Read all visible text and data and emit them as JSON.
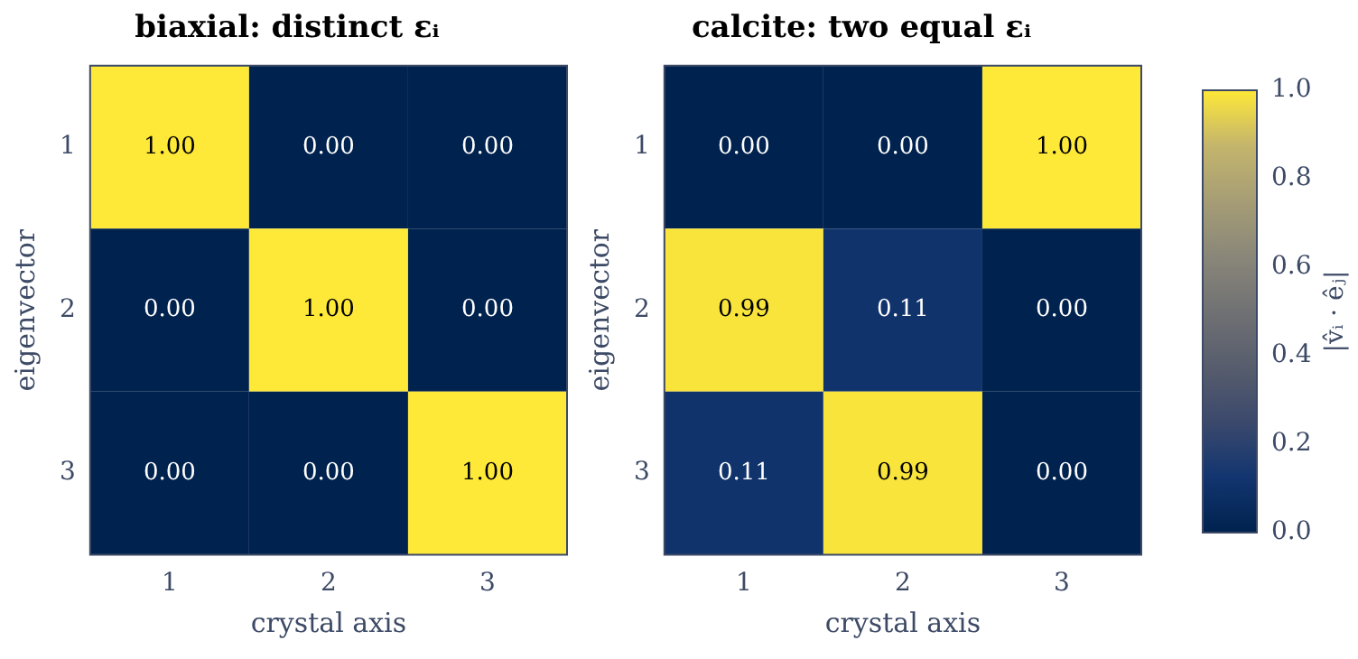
{
  "chart_data": [
    {
      "type": "heatmap",
      "title": "biaxial: distinct εᵢ",
      "xlabel": "crystal axis",
      "ylabel": "eigenvector",
      "categories": [
        "1",
        "2",
        "3"
      ],
      "y_categories": [
        "1",
        "2",
        "3"
      ],
      "cells": [
        [
          1,
          0,
          0
        ],
        [
          0,
          1,
          0
        ],
        [
          0,
          0,
          1
        ]
      ],
      "cell_labels": [
        [
          "1.00",
          "0.00",
          "0.00"
        ],
        [
          "0.00",
          "1.00",
          "0.00"
        ],
        [
          "0.00",
          "0.00",
          "1.00"
        ]
      ]
    },
    {
      "type": "heatmap",
      "title": "calcite: two equal εᵢ",
      "xlabel": "crystal axis",
      "ylabel": "eigenvector",
      "categories": [
        "1",
        "2",
        "3"
      ],
      "y_categories": [
        "1",
        "2",
        "3"
      ],
      "cells": [
        [
          0,
          0,
          1
        ],
        [
          0.99,
          0.11,
          0
        ],
        [
          0.11,
          0.99,
          0
        ]
      ],
      "cell_labels": [
        [
          "0.00",
          "0.00",
          "1.00"
        ],
        [
          "0.99",
          "0.11",
          "0.00"
        ],
        [
          "0.11",
          "0.99",
          "0.00"
        ]
      ],
      "clim": [
        0,
        1
      ],
      "cticks": [
        {
          "value": 0,
          "label": "0.0"
        },
        0.2,
        0.4,
        0.6,
        0.8,
        {
          "value": 1,
          "label": "1.0"
        }
      ],
      "clabel": "|v̂ᵢ · êⱼ|"
    }
  ]
}
